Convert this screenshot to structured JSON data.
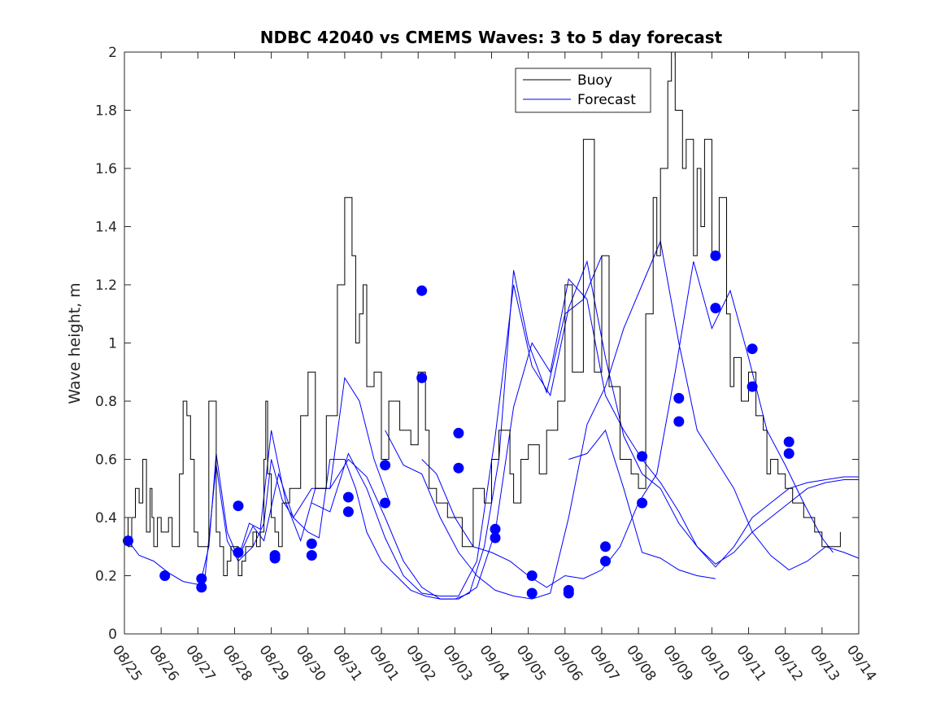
{
  "chart_data": {
    "type": "line",
    "title": "NDBC 42040 vs CMEMS Waves: 3 to 5 day forecast",
    "xlabel": "",
    "ylabel": "Wave height, m",
    "xlim": [
      0,
      20
    ],
    "ylim": [
      0,
      2
    ],
    "y_ticks": [
      0,
      0.2,
      0.4,
      0.6,
      0.8,
      1,
      1.2,
      1.4,
      1.6,
      1.8,
      2
    ],
    "y_tick_labels": [
      "0",
      "0.2",
      "0.4",
      "0.6",
      "0.8",
      "1",
      "1.2",
      "1.4",
      "1.6",
      "1.8",
      "2"
    ],
    "x_tick_labels": [
      "08/25",
      "08/26",
      "08/27",
      "08/28",
      "08/29",
      "08/30",
      "08/31",
      "09/01",
      "09/02",
      "09/03",
      "09/04",
      "09/05",
      "09/06",
      "09/07",
      "09/08",
      "09/09",
      "09/10",
      "09/11",
      "09/12",
      "09/13",
      "09/14"
    ],
    "grid": false,
    "legend": {
      "location": "top",
      "entries": [
        {
          "label": "Buoy",
          "color": "#000000"
        },
        {
          "label": "Forecast",
          "color": "#0000ff"
        }
      ]
    },
    "series": [
      {
        "name": "Buoy",
        "color": "#000000",
        "x": [
          0,
          0.1,
          0.2,
          0.3,
          0.4,
          0.5,
          0.6,
          0.7,
          0.75,
          0.8,
          0.9,
          1.0,
          1.1,
          1.2,
          1.3,
          1.4,
          1.5,
          1.6,
          1.7,
          1.8,
          1.9,
          2.0,
          2.1,
          2.3,
          2.5,
          2.6,
          2.7,
          2.8,
          2.9,
          3.0,
          3.1,
          3.2,
          3.3,
          3.5,
          3.6,
          3.7,
          3.8,
          3.85,
          3.9,
          4.0,
          4.1,
          4.2,
          4.3,
          4.5,
          4.8,
          5.0,
          5.2,
          5.5,
          5.8,
          6.0,
          6.2,
          6.3,
          6.4,
          6.5,
          6.6,
          6.8,
          7.0,
          7.2,
          7.5,
          7.8,
          8.0,
          8.2,
          8.3,
          8.5,
          8.6,
          8.8,
          9.0,
          9.2,
          9.5,
          9.8,
          10.0,
          10.2,
          10.5,
          10.6,
          10.8,
          11.0,
          11.3,
          11.5,
          11.8,
          12.0,
          12.2,
          12.5,
          12.8,
          13.0,
          13.2,
          13.5,
          13.8,
          14.0,
          14.2,
          14.4,
          14.5,
          14.6,
          14.8,
          14.9,
          15.0,
          15.2,
          15.3,
          15.5,
          15.6,
          15.7,
          15.8,
          16.0,
          16.2,
          16.4,
          16.5,
          16.6,
          16.8,
          17.0,
          17.2,
          17.4,
          17.5,
          17.6,
          17.8,
          18.0,
          18.2,
          18.5,
          18.8,
          19.0,
          19.2,
          19.5
        ],
        "y": [
          0.4,
          0.3,
          0.4,
          0.5,
          0.45,
          0.6,
          0.35,
          0.5,
          0.4,
          0.3,
          0.4,
          0.35,
          0.35,
          0.4,
          0.3,
          0.3,
          0.55,
          0.8,
          0.75,
          0.6,
          0.35,
          0.3,
          0.3,
          0.8,
          0.35,
          0.3,
          0.2,
          0.25,
          0.3,
          0.3,
          0.2,
          0.25,
          0.3,
          0.35,
          0.3,
          0.35,
          0.6,
          0.8,
          0.55,
          0.4,
          0.35,
          0.3,
          0.45,
          0.5,
          0.75,
          0.9,
          0.5,
          0.75,
          1.2,
          1.5,
          1.3,
          1.0,
          1.1,
          1.2,
          0.85,
          0.9,
          0.6,
          0.8,
          0.7,
          0.65,
          0.9,
          0.7,
          0.5,
          0.45,
          0.45,
          0.4,
          0.4,
          0.3,
          0.5,
          0.45,
          0.6,
          0.7,
          0.55,
          0.45,
          0.6,
          0.65,
          0.55,
          0.7,
          0.8,
          1.2,
          0.9,
          1.7,
          0.9,
          1.3,
          0.85,
          0.6,
          0.55,
          0.5,
          1.1,
          1.5,
          1.3,
          1.6,
          1.9,
          2.0,
          1.8,
          1.6,
          1.7,
          1.3,
          1.6,
          1.4,
          1.7,
          1.3,
          1.5,
          1.1,
          0.85,
          0.95,
          0.8,
          0.9,
          0.75,
          0.7,
          0.55,
          0.6,
          0.55,
          0.5,
          0.45,
          0.4,
          0.35,
          0.3,
          0.3,
          0.35
        ]
      },
      {
        "name": "Forecast",
        "color": "#0000ff",
        "segments": [
          {
            "x": [
              0.1,
              0.4,
              0.8,
              1.2,
              1.6,
              2.0,
              2.2,
              2.5,
              2.8,
              3.1,
              3.5,
              3.8,
              4.0,
              4.3,
              4.6,
              5.0,
              5.3,
              5.6,
              6.0,
              6.3,
              6.6,
              7.0,
              7.4,
              7.8,
              8.2,
              8.6,
              9.0,
              9.4,
              9.8,
              10.2,
              10.6,
              11.0,
              11.5,
              12.0,
              12.5,
              13.0
            ],
            "y": [
              0.32,
              0.27,
              0.25,
              0.21,
              0.18,
              0.17,
              0.2,
              0.58,
              0.32,
              0.25,
              0.3,
              0.38,
              0.6,
              0.46,
              0.4,
              0.35,
              0.33,
              0.6,
              0.6,
              0.5,
              0.35,
              0.25,
              0.2,
              0.15,
              0.13,
              0.12,
              0.12,
              0.14,
              0.3,
              0.6,
              1.25,
              1.0,
              0.83,
              1.1,
              1.15,
              1.3
            ]
          },
          {
            "x": [
              2.1,
              2.3,
              2.5,
              2.8,
              3.1,
              3.4,
              3.7,
              4.0,
              4.4,
              4.8,
              5.2,
              5.6,
              6.0,
              6.4,
              6.8,
              7.2
            ],
            "y": [
              0.19,
              0.3,
              0.62,
              0.35,
              0.26,
              0.38,
              0.36,
              0.7,
              0.45,
              0.32,
              0.5,
              0.5,
              0.88,
              0.8,
              0.6,
              0.46
            ]
          },
          {
            "x": [
              3.1,
              3.5,
              3.8,
              4.2,
              4.6,
              5.1,
              5.6,
              6.1,
              6.6,
              7.1,
              7.6,
              8.1,
              8.6,
              9.1,
              9.6,
              10.1,
              10.6,
              11.1,
              11.6,
              12.1,
              12.6,
              13.1,
              13.6,
              14.1,
              14.6,
              15.1,
              15.6,
              16.1,
              16.6,
              17.1,
              17.6,
              18.1,
              18.6,
              19.1,
              19.6,
              20.0
            ],
            "y": [
              0.26,
              0.37,
              0.32,
              0.55,
              0.4,
              0.5,
              0.5,
              0.6,
              0.54,
              0.4,
              0.25,
              0.16,
              0.12,
              0.12,
              0.16,
              0.35,
              0.78,
              1.0,
              0.9,
              1.22,
              1.15,
              0.82,
              0.7,
              0.6,
              0.52,
              0.42,
              0.3,
              0.23,
              0.3,
              0.4,
              0.45,
              0.5,
              0.52,
              0.53,
              0.54,
              0.54
            ]
          },
          {
            "x": [
              5.1,
              5.6,
              6.1,
              6.6,
              7.1,
              7.6,
              8.1,
              8.6,
              9.1,
              9.6,
              10.1,
              10.6,
              11.1,
              11.6,
              12.1,
              12.6,
              13.1,
              13.6,
              14.1,
              14.6,
              15.1,
              15.6,
              16.1,
              16.6,
              17.1,
              17.6,
              18.1,
              18.6,
              19.1,
              19.6,
              20.0
            ],
            "y": [
              0.45,
              0.42,
              0.62,
              0.5,
              0.33,
              0.2,
              0.14,
              0.13,
              0.13,
              0.25,
              0.68,
              1.2,
              0.92,
              0.82,
              1.12,
              1.28,
              0.95,
              0.68,
              0.55,
              0.5,
              0.38,
              0.3,
              0.24,
              0.28,
              0.35,
              0.4,
              0.45,
              0.5,
              0.52,
              0.53,
              0.53
            ]
          },
          {
            "x": [
              7.1,
              7.6,
              8.1,
              8.6,
              9.1,
              9.6,
              10.1,
              10.6,
              11.1,
              11.6,
              12.1,
              12.6,
              13.1,
              13.6,
              14.1,
              14.6,
              15.1,
              15.6,
              16.1,
              16.6,
              17.1,
              17.6,
              18.1,
              18.6,
              19.1,
              19.6,
              20.0
            ],
            "y": [
              0.7,
              0.58,
              0.55,
              0.4,
              0.28,
              0.2,
              0.15,
              0.13,
              0.12,
              0.14,
              0.4,
              0.72,
              0.85,
              1.05,
              1.2,
              1.35,
              1.0,
              0.7,
              0.6,
              0.5,
              0.35,
              0.27,
              0.22,
              0.25,
              0.3,
              0.28,
              0.26
            ]
          },
          {
            "x": [
              8.1,
              8.5,
              9.0,
              9.5,
              10.0,
              10.5,
              11.0,
              11.5,
              12.0,
              12.5,
              13.0,
              13.5,
              14.0,
              14.5,
              15.0,
              15.5,
              16.0,
              16.5,
              17.0,
              17.5,
              18.0,
              18.5,
              19.0,
              19.3
            ],
            "y": [
              0.6,
              0.55,
              0.4,
              0.3,
              0.28,
              0.25,
              0.2,
              0.16,
              0.2,
              0.19,
              0.22,
              0.3,
              0.45,
              0.55,
              0.9,
              1.28,
              1.05,
              1.18,
              0.95,
              0.7,
              0.58,
              0.45,
              0.33,
              0.28
            ]
          },
          {
            "x": [
              12.1,
              12.6,
              13.1,
              13.6,
              14.1,
              14.6,
              15.1,
              15.6,
              16.1
            ],
            "y": [
              0.6,
              0.62,
              0.7,
              0.5,
              0.28,
              0.26,
              0.22,
              0.2,
              0.19
            ]
          }
        ]
      }
    ],
    "markers": {
      "name": "Forecast points",
      "color": "#0000ff",
      "x": [
        0.1,
        1.1,
        2.1,
        2.1,
        3.1,
        3.1,
        4.1,
        4.1,
        5.1,
        5.1,
        6.1,
        6.1,
        7.1,
        7.1,
        8.1,
        8.1,
        9.1,
        9.1,
        10.1,
        10.1,
        11.1,
        11.1,
        12.1,
        12.1,
        13.1,
        13.1,
        14.1,
        14.1,
        15.1,
        15.1,
        16.1,
        16.1,
        17.1,
        17.1,
        18.1,
        18.1
      ],
      "y": [
        0.32,
        0.2,
        0.19,
        0.16,
        0.44,
        0.28,
        0.27,
        0.26,
        0.31,
        0.27,
        0.47,
        0.42,
        0.58,
        0.45,
        1.18,
        0.88,
        0.69,
        0.57,
        0.36,
        0.33,
        0.2,
        0.14,
        0.15,
        0.14,
        0.3,
        0.25,
        0.61,
        0.45,
        0.81,
        0.73,
        1.3,
        1.12,
        0.98,
        0.85,
        0.66,
        0.62
      ]
    }
  }
}
